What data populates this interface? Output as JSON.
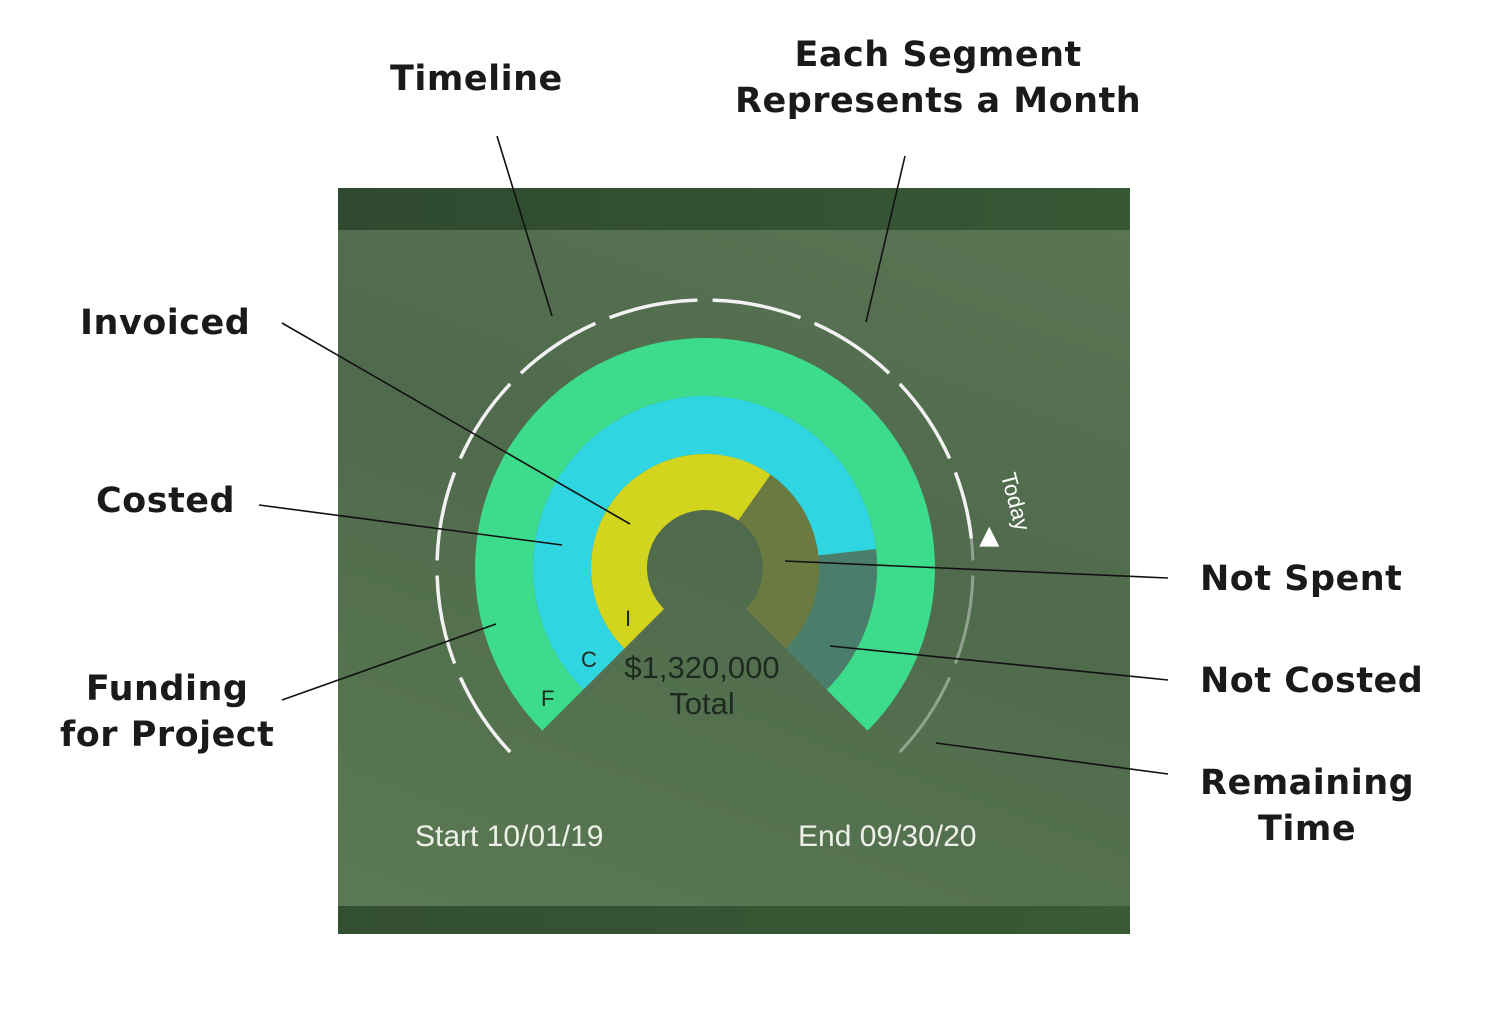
{
  "callouts": {
    "timeline": "Timeline",
    "segment_line1": "Each Segment",
    "segment_line2": "Represents a Month",
    "invoiced": "Invoiced",
    "costed": "Costed",
    "funding_line1": "Funding",
    "funding_line2": "for Project",
    "not_spent": "Not Spent",
    "not_costed": "Not Costed",
    "remaining_line1": "Remaining",
    "remaining_line2": "Time"
  },
  "gauge": {
    "total_amount": "$1,320,000",
    "total_label": "Total",
    "ring_letters": {
      "funding": "F",
      "costed": "C",
      "invoiced": "I"
    },
    "today_label": "Today",
    "start_label": "Start 10/01/19",
    "end_label": "End 09/30/20",
    "months": 12,
    "elapsed_fraction": 0.81,
    "costed_fraction": 0.81,
    "invoiced_fraction": 0.63,
    "colors": {
      "panel": "#55714f",
      "funding": "#3ddb8c",
      "costed": "#2fd5e0",
      "invoiced": "#d2d41d",
      "not_costed": "#4a7e6a",
      "not_spent": "#6a7a40",
      "timeline": "#f2f2f2"
    }
  }
}
